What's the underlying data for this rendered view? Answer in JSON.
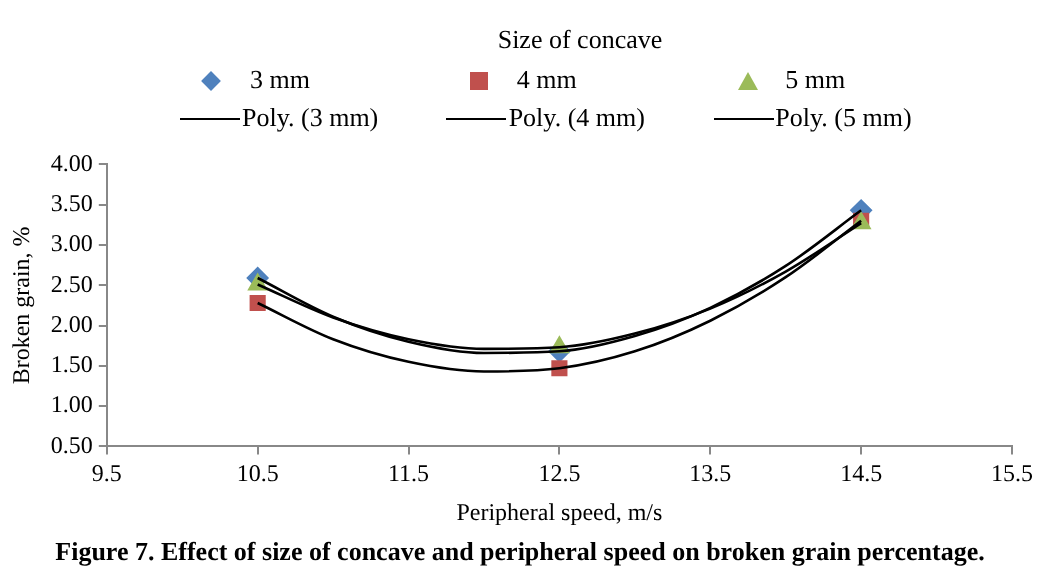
{
  "chart_data": {
    "type": "scatter",
    "legend_title": "Size of concave",
    "xlabel": "Peripheral speed, m/s",
    "ylabel": "Broken grain, %",
    "x": [
      10.5,
      12.5,
      14.5
    ],
    "series": [
      {
        "name": "3 mm",
        "color": "#4f81bd",
        "marker": "diamond",
        "values": [
          2.59,
          1.68,
          3.43
        ]
      },
      {
        "name": "4 mm",
        "color": "#c0504d",
        "marker": "square",
        "values": [
          2.28,
          1.47,
          3.3
        ]
      },
      {
        "name": "5 mm",
        "color": "#9bbb59",
        "marker": "triangle",
        "values": [
          2.51,
          1.73,
          3.27
        ]
      },
      {
        "name": "Poly. (3 mm)",
        "type": "line",
        "color": "#000000",
        "marker": "none",
        "line_style": "solid",
        "x": [
          10.5,
          11,
          11.5,
          12,
          12.5,
          13,
          13.5,
          14,
          14.5
        ],
        "values": [
          2.59,
          2.11,
          1.8,
          1.66,
          1.68,
          1.87,
          2.22,
          2.74,
          3.43
        ]
      },
      {
        "name": "Poly. (4 mm)",
        "type": "line",
        "color": "#000000",
        "marker": "none",
        "line_style": "solid",
        "x": [
          10.5,
          11,
          11.5,
          12,
          12.5,
          13,
          13.5,
          14,
          14.5
        ],
        "values": [
          2.28,
          1.83,
          1.55,
          1.43,
          1.47,
          1.68,
          2.06,
          2.6,
          3.3
        ]
      },
      {
        "name": "Poly. (5 mm)",
        "type": "line",
        "color": "#000000",
        "marker": "none",
        "line_style": "solid",
        "x": [
          10.5,
          11,
          11.5,
          12,
          12.5,
          13,
          13.5,
          14,
          14.5
        ],
        "values": [
          2.51,
          2.1,
          1.83,
          1.71,
          1.73,
          1.9,
          2.21,
          2.67,
          3.27
        ]
      }
    ],
    "xlim": [
      9.5,
      15.5
    ],
    "xticks": [
      9.5,
      10.5,
      11.5,
      12.5,
      13.5,
      14.5,
      15.5
    ],
    "ylim": [
      0.5,
      4
    ],
    "yticks": [
      {
        "value": 0.5,
        "label": "0.50"
      },
      {
        "value": 1,
        "label": "1.00"
      },
      {
        "value": 1.5,
        "label": "1.50"
      },
      {
        "value": 2,
        "label": "2.00"
      },
      {
        "value": 2.5,
        "label": "2.50"
      },
      {
        "value": 3,
        "label": "3.00"
      },
      {
        "value": 3.5,
        "label": "3.50"
      },
      {
        "value": 4,
        "label": "4.00"
      }
    ],
    "grid": false,
    "legend": "top",
    "annotations": [
      "Figure 7. Effect of size of concave and peripheral speed on broken grain percentage."
    ]
  }
}
